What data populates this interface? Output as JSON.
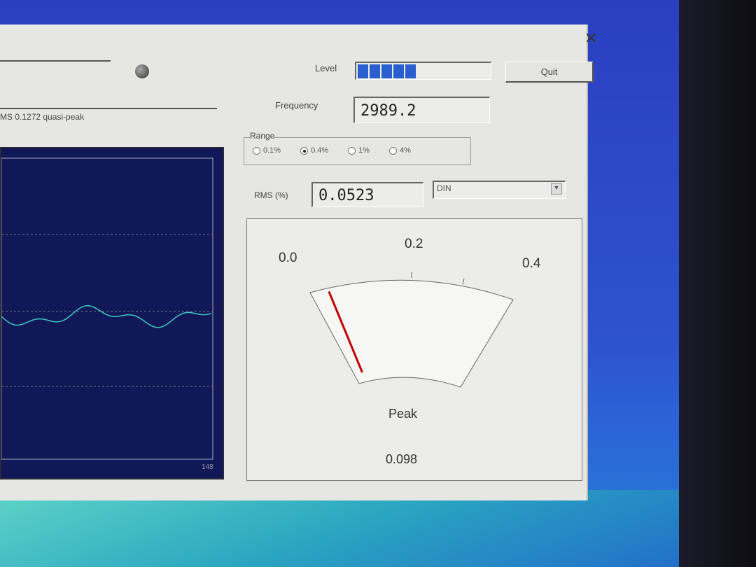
{
  "status_text": "MS 0.1272 quasi-peak",
  "level": {
    "label": "Level",
    "segments": 5
  },
  "quit_label": "Quit",
  "close_icon": "close-icon",
  "frequency": {
    "label": "Frequency",
    "value": "2989.2"
  },
  "range": {
    "label": "Range",
    "options": [
      "0.1%",
      "0.4%",
      "1%",
      "4%"
    ],
    "selected": "0.4%"
  },
  "rms": {
    "label": "RMS (%)",
    "value": "0.0523"
  },
  "weighting": {
    "value": "DIN"
  },
  "graph": {
    "axis_label": "148",
    "trace_color": "#3fc8c0"
  },
  "meter": {
    "ticks": [
      "0.0",
      "0.2",
      "0.4"
    ],
    "needle_value": 0.06,
    "needle_color": "#c00000",
    "peak_label": "Peak",
    "peak_value": "0.098"
  }
}
